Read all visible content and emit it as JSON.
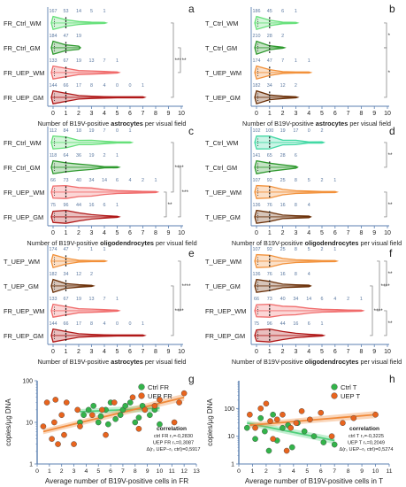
{
  "colors": {
    "ctrl_wm": "#66e07a",
    "ctrl_gm": "#2f9a2f",
    "uep_wm": "#f2913a",
    "uep_gm": "#6b3008",
    "fr_uep_wm": "#f06b6b",
    "fr_uep_gm": "#b01818",
    "ctrl_wm_od": "#43d9a5",
    "scatter_ctrl": "#33b44a",
    "scatter_uep": "#e8641e",
    "fit_ctrl": "#4fd07a",
    "fit_uep": "#f08a3a",
    "axis": "#5b7fb0",
    "count_text": "#5a78a0"
  },
  "chart_data": [
    {
      "id": "a",
      "type": "violin",
      "xlabel_parts": [
        "Number of B19V-positive ",
        "astrocytes",
        " per visual field"
      ],
      "xlim": [
        0,
        10
      ],
      "rows": [
        {
          "label": "FR_Ctrl_WM",
          "color": "ctrl_wm",
          "counts": [
            "167",
            "53",
            "14",
            "5",
            "1"
          ],
          "values": [
            167,
            53,
            14,
            5,
            1
          ]
        },
        {
          "label": "FR_Ctrl_GM",
          "color": "ctrl_gm",
          "counts": [
            "184",
            "47",
            "19"
          ],
          "values": [
            184,
            47,
            19
          ]
        },
        {
          "label": "FR_UEP_WM",
          "color": "fr_uep_wm",
          "counts": [
            "133",
            "67",
            "19",
            "13",
            "7",
            "1"
          ],
          "values": [
            133,
            67,
            19,
            13,
            7,
            1
          ]
        },
        {
          "label": "FR_UEP_GM",
          "color": "fr_uep_gm",
          "counts": [
            "144",
            "66",
            "17",
            "8",
            "4",
            "0",
            "0",
            "1"
          ],
          "values": [
            144,
            66,
            17,
            8,
            4,
            0,
            0,
            1
          ]
        }
      ],
      "brackets": [
        {
          "from": 0,
          "to": 3,
          "label": "***",
          "level": 1
        },
        {
          "from": 1,
          "to": 2,
          "label": "**",
          "level": 0
        }
      ]
    },
    {
      "id": "b",
      "type": "violin",
      "xlabel_parts": [
        "Number of B19V-positive ",
        "astrocytes",
        " per visual field"
      ],
      "xlim": [
        0,
        10
      ],
      "rows": [
        {
          "label": "T_Ctrl_WM",
          "color": "ctrl_wm",
          "counts": [
            "186",
            "45",
            "6",
            "1"
          ],
          "values": [
            186,
            45,
            6,
            1
          ]
        },
        {
          "label": "T_Ctrl_GM",
          "color": "ctrl_gm",
          "counts": [
            "210",
            "28",
            "2"
          ],
          "values": [
            210,
            28,
            2
          ]
        },
        {
          "label": "T_UEP_WM",
          "color": "uep_wm",
          "counts": [
            "174",
            "47",
            "7",
            "1",
            "1"
          ],
          "values": [
            174,
            47,
            7,
            1,
            1
          ]
        },
        {
          "label": "T_UEP_GM",
          "color": "uep_gm",
          "counts": [
            "182",
            "34",
            "12",
            "2"
          ],
          "values": [
            182,
            34,
            12,
            2
          ]
        }
      ],
      "brackets": [
        {
          "from": 0,
          "to": 1,
          "label": "*",
          "level": 0
        },
        {
          "from": 1,
          "to": 3,
          "label": "*",
          "level": 0
        }
      ]
    },
    {
      "id": "c",
      "type": "violin",
      "xlabel_parts": [
        "Number of B19V-positive ",
        "oligodendrocytes",
        " per visual field"
      ],
      "xlim": [
        0,
        10
      ],
      "rows": [
        {
          "label": "FR_Ctrl_WM",
          "color": "ctrl_wm",
          "counts": [
            "112",
            "84",
            "18",
            "19",
            "7",
            "0",
            "1"
          ],
          "values": [
            112,
            84,
            18,
            19,
            7,
            0,
            1
          ]
        },
        {
          "label": "FR_Ctrl_GM",
          "color": "ctrl_gm",
          "counts": [
            "118",
            "64",
            "36",
            "19",
            "2",
            "1"
          ],
          "values": [
            118,
            64,
            36,
            19,
            2,
            1
          ]
        },
        {
          "label": "FR_UEP_WM",
          "color": "fr_uep_wm",
          "counts": [
            "66",
            "73",
            "40",
            "34",
            "14",
            "6",
            "4",
            "2",
            "1"
          ],
          "values": [
            66,
            73,
            40,
            34,
            14,
            6,
            4,
            2,
            1
          ]
        },
        {
          "label": "FR_UEP_GM",
          "color": "fr_uep_gm",
          "counts": [
            "75",
            "96",
            "44",
            "16",
            "6",
            "1"
          ],
          "values": [
            75,
            96,
            44,
            16,
            6,
            1
          ]
        }
      ],
      "brackets": [
        {
          "from": 0,
          "to": 2,
          "label": "****",
          "level": 1
        },
        {
          "from": 1,
          "to": 3,
          "label": "***",
          "level": 0
        },
        {
          "from": 2,
          "to": 3,
          "label": "**",
          "level": 2
        }
      ]
    },
    {
      "id": "d",
      "type": "violin",
      "xlabel_parts": [
        "Number of B19V-positive ",
        "oligodendrocytes",
        " per visual field"
      ],
      "xlim": [
        0,
        10
      ],
      "rows": [
        {
          "label": "T_Ctrl_WM",
          "color": "ctrl_wm_od",
          "counts": [
            "102",
            "100",
            "19",
            "17",
            "0",
            "2"
          ],
          "values": [
            102,
            100,
            19,
            17,
            0,
            2
          ]
        },
        {
          "label": "T_Ctrl_GM",
          "color": "ctrl_gm",
          "counts": [
            "141",
            "65",
            "28",
            "6"
          ],
          "values": [
            141,
            65,
            28,
            6
          ]
        },
        {
          "label": "T_UEP_WM",
          "color": "uep_wm",
          "counts": [
            "107",
            "92",
            "25",
            "8",
            "5",
            "2",
            "1"
          ],
          "values": [
            107,
            92,
            25,
            8,
            5,
            2,
            1
          ]
        },
        {
          "label": "T_UEP_GM",
          "color": "uep_gm",
          "counts": [
            "136",
            "76",
            "16",
            "8",
            "4"
          ],
          "values": [
            136,
            76,
            16,
            8,
            4
          ]
        }
      ],
      "brackets": [
        {
          "from": 0,
          "to": 1,
          "label": "**",
          "level": 0
        },
        {
          "from": 2,
          "to": 3,
          "label": "**",
          "level": 0
        }
      ]
    },
    {
      "id": "e",
      "type": "violin",
      "xlabel_parts": [
        "Number of B19V-positive ",
        "astrocytes",
        " per visual field"
      ],
      "xlim": [
        0,
        10
      ],
      "rows": [
        {
          "label": "T_UEP_WM",
          "color": "uep_wm",
          "counts": [
            "174",
            "47",
            "7",
            "1",
            "1"
          ],
          "values": [
            174,
            47,
            7,
            1,
            1
          ]
        },
        {
          "label": "T_UEP_GM",
          "color": "uep_gm",
          "counts": [
            "182",
            "34",
            "12",
            "2"
          ],
          "values": [
            182,
            34,
            12,
            2
          ]
        },
        {
          "label": "FR_UEP_WM",
          "color": "fr_uep_wm",
          "counts": [
            "133",
            "67",
            "19",
            "13",
            "7",
            "1"
          ],
          "values": [
            133,
            67,
            19,
            13,
            7,
            1
          ]
        },
        {
          "label": "FR_UEP_GM",
          "color": "fr_uep_gm",
          "counts": [
            "144",
            "66",
            "17",
            "8",
            "4",
            "0",
            "0",
            "1"
          ],
          "values": [
            144,
            66,
            17,
            8,
            4,
            0,
            0,
            1
          ]
        }
      ],
      "brackets": [
        {
          "from": 0,
          "to": 2,
          "label": "****",
          "level": 0
        },
        {
          "from": 1,
          "to": 3,
          "label": "****",
          "level": 1
        }
      ]
    },
    {
      "id": "f",
      "type": "violin",
      "xlabel_parts": [
        "Number of B19V-positive ",
        "oligodendrocytes",
        " per visual field"
      ],
      "xlim": [
        0,
        10
      ],
      "rows": [
        {
          "label": "T_UEP_WM",
          "color": "uep_wm",
          "counts": [
            "107",
            "92",
            "25",
            "8",
            "5",
            "2",
            "1"
          ],
          "values": [
            107,
            92,
            25,
            8,
            5,
            2,
            1
          ]
        },
        {
          "label": "T_UEP_GM",
          "color": "uep_gm",
          "counts": [
            "136",
            "76",
            "16",
            "8",
            "4"
          ],
          "values": [
            136,
            76,
            16,
            8,
            4
          ]
        },
        {
          "label": "FR_UEP_WM",
          "color": "fr_uep_wm",
          "counts": [
            "66",
            "73",
            "40",
            "34",
            "14",
            "6",
            "4",
            "2",
            "1"
          ],
          "values": [
            66,
            73,
            40,
            34,
            14,
            6,
            4,
            2,
            1
          ]
        },
        {
          "label": "FR_UEP_GM",
          "color": "fr_uep_gm",
          "counts": [
            "75",
            "96",
            "44",
            "16",
            "6",
            "1"
          ],
          "values": [
            75,
            96,
            44,
            16,
            6,
            1
          ]
        }
      ],
      "brackets": [
        {
          "from": 0,
          "to": 1,
          "label": "**",
          "level": 0
        },
        {
          "from": 0,
          "to": 2,
          "label": "****",
          "level": 1
        },
        {
          "from": 1,
          "to": 3,
          "label": "****",
          "level": 2
        },
        {
          "from": 2,
          "to": 3,
          "label": "**",
          "level": 0
        }
      ]
    },
    {
      "id": "g",
      "type": "scatter",
      "ylabel": "copies/µg DNA",
      "xlabel": "Average number of B19V-positive cells in FR",
      "xlim": [
        0,
        13
      ],
      "ylim": [
        1,
        100
      ],
      "yscale": "log",
      "xticks": [
        0,
        1,
        2,
        3,
        4,
        5,
        6,
        7,
        8,
        9,
        10,
        11,
        12,
        13
      ],
      "yticks": [
        {
          "v": 1,
          "t": "1"
        },
        {
          "v": 10,
          "t": "10"
        },
        {
          "v": 100,
          "t": "100"
        }
      ],
      "legend": [
        {
          "name": "Ctrl FR",
          "color": "scatter_ctrl"
        },
        {
          "name": "UEP FR",
          "color": "scatter_uep"
        }
      ],
      "series": [
        {
          "name": "Ctrl FR",
          "color": "scatter_ctrl",
          "points": [
            [
              3.5,
              10
            ],
            [
              3.8,
              15
            ],
            [
              4.2,
              20
            ],
            [
              4.6,
              25
            ],
            [
              5,
              10
            ],
            [
              5.2,
              14
            ],
            [
              5.6,
              20
            ],
            [
              6,
              30
            ],
            [
              6.4,
              12
            ],
            [
              7,
              20
            ],
            [
              7.2,
              25
            ],
            [
              7.6,
              30
            ],
            [
              8,
              10
            ],
            [
              8.3,
              13
            ],
            [
              8.6,
              25
            ],
            [
              9.2,
              15
            ],
            [
              9.6,
              20
            ],
            [
              10,
              9
            ],
            [
              6.8,
              15
            ],
            [
              5.8,
              9
            ]
          ],
          "fit": [
            [
              3.5,
              18
            ],
            [
              10,
              22
            ]
          ]
        },
        {
          "name": "UEP FR",
          "color": "scatter_uep",
          "points": [
            [
              0.5,
              8
            ],
            [
              0.8,
              30
            ],
            [
              1.2,
              4
            ],
            [
              1.4,
              10
            ],
            [
              1.5,
              35
            ],
            [
              1.7,
              3
            ],
            [
              2,
              15
            ],
            [
              2.2,
              5
            ],
            [
              2.4,
              30
            ],
            [
              3,
              3
            ],
            [
              3.3,
              20
            ],
            [
              3.5,
              8
            ],
            [
              4.5,
              15
            ],
            [
              5.3,
              20
            ],
            [
              5.6,
              5
            ],
            [
              6.3,
              30
            ],
            [
              7.8,
              40
            ],
            [
              8.3,
              7
            ],
            [
              8.8,
              20
            ],
            [
              9.6,
              25
            ],
            [
              10,
              35
            ],
            [
              11.2,
              10
            ],
            [
              11.6,
              30
            ],
            [
              12,
              50
            ]
          ],
          "fit": [
            [
              0.5,
              6
            ],
            [
              12,
              40
            ]
          ]
        }
      ],
      "corr_title": "correlation",
      "corr_lines": [
        "ctrl FR rₛ=-0,2830",
        "UEP FR rₛ=0,3087",
        "Δ(rₛ UEP−rₛ ctrl)=0,5917"
      ]
    },
    {
      "id": "h",
      "type": "scatter",
      "ylabel": "copies/µg DNA",
      "xlabel": "Average number of B19V-positive cells in T",
      "xlim": [
        0,
        11
      ],
      "ylim": [
        1,
        1000
      ],
      "yscale": "log",
      "xticks": [
        0,
        1,
        2,
        3,
        4,
        5,
        6,
        7,
        8,
        9,
        10,
        11
      ],
      "yticks": [
        {
          "v": 1,
          "t": "1"
        },
        {
          "v": 10,
          "t": "10"
        },
        {
          "v": 100,
          "t": "100"
        }
      ],
      "legend": [
        {
          "name": "Ctrl T",
          "color": "scatter_ctrl"
        },
        {
          "name": "UEP T",
          "color": "scatter_uep"
        }
      ],
      "series": [
        {
          "name": "Ctrl T",
          "color": "scatter_ctrl",
          "points": [
            [
              0.6,
              20
            ],
            [
              1.2,
              8
            ],
            [
              1.6,
              45
            ],
            [
              1.9,
              15
            ],
            [
              2.2,
              3
            ],
            [
              2.5,
              60
            ],
            [
              2.8,
              7
            ],
            [
              3.2,
              20
            ],
            [
              3.6,
              25
            ],
            [
              3.9,
              4
            ],
            [
              4.3,
              30
            ],
            [
              4.8,
              15
            ],
            [
              5.5,
              10
            ],
            [
              6.2,
              6
            ],
            [
              7,
              5
            ]
          ],
          "fit": [
            [
              0.6,
              30
            ],
            [
              7,
              7
            ]
          ]
        },
        {
          "name": "UEP T",
          "color": "scatter_uep",
          "points": [
            [
              0.8,
              60
            ],
            [
              1.2,
              20
            ],
            [
              1.6,
              100
            ],
            [
              2,
              150
            ],
            [
              2.3,
              35
            ],
            [
              2.5,
              8
            ],
            [
              2.8,
              40
            ],
            [
              3.2,
              60
            ],
            [
              3.5,
              3
            ],
            [
              3.8,
              20
            ],
            [
              4.2,
              30
            ],
            [
              4.6,
              80
            ],
            [
              5.2,
              40
            ],
            [
              6,
              70
            ],
            [
              6.8,
              10
            ],
            [
              7.6,
              30
            ],
            [
              8.4,
              45
            ],
            [
              10,
              60
            ]
          ],
          "fit": [
            [
              0.8,
              25
            ],
            [
              10,
              60
            ]
          ]
        }
      ],
      "corr_title": "correlation",
      "corr_lines": [
        "ctrl T rₛ=-0,3225",
        "UEP T rₛ=0,2049",
        "Δ(rₛ UEP−rₛ ctrl)=0,5274"
      ]
    }
  ]
}
